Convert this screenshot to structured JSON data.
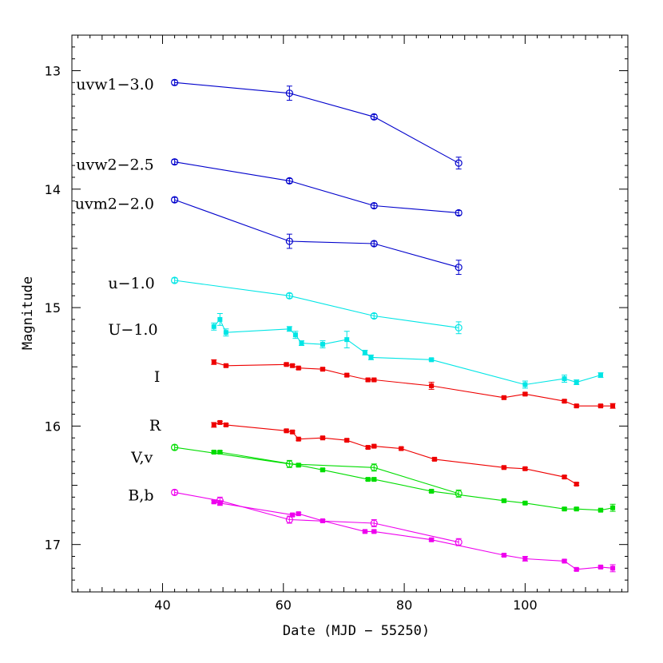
{
  "chart_data": {
    "type": "line",
    "xlabel": "Date (MJD − 55250)",
    "ylabel": "Magnitude",
    "xlim": [
      25,
      117
    ],
    "ylim": [
      17.4,
      12.7
    ],
    "y_inverted": true,
    "x_ticks": [
      40,
      60,
      80,
      100
    ],
    "y_ticks": [
      13,
      14,
      15,
      16,
      17
    ],
    "grid": false,
    "legend": "inline labels",
    "series": [
      {
        "label": "uvw1−3.0",
        "color": "#0000cc",
        "marker": "open-circle",
        "label_pos": [
          25.7,
          13.11
        ],
        "points": [
          [
            42,
            13.1,
            0.02
          ],
          [
            61,
            13.19,
            0.06
          ],
          [
            75,
            13.39,
            0.02
          ],
          [
            89,
            13.78,
            0.05
          ]
        ]
      },
      {
        "label": "uvw2−2.5",
        "color": "#0000cc",
        "marker": "open-circle",
        "label_pos": [
          25.7,
          13.79
        ],
        "points": [
          [
            42,
            13.77,
            0.02
          ],
          [
            61,
            13.93,
            0.02
          ],
          [
            75,
            14.14,
            0.02
          ],
          [
            89,
            14.2,
            0.02
          ]
        ]
      },
      {
        "label": "uvm2−2.0",
        "color": "#0000cc",
        "marker": "open-circle",
        "label_pos": [
          25.5,
          14.12
        ],
        "points": [
          [
            42,
            14.09,
            0.02
          ],
          [
            61,
            14.44,
            0.06
          ],
          [
            75,
            14.46,
            0.02
          ],
          [
            89,
            14.66,
            0.06
          ]
        ]
      },
      {
        "label": "u−1.0",
        "color": "#00e5e5",
        "marker": "open-circle",
        "label_pos": [
          31,
          14.79
        ],
        "points": [
          [
            42,
            14.77,
            0.02
          ],
          [
            61,
            14.9,
            0.02
          ],
          [
            75,
            15.07,
            0.02
          ],
          [
            89,
            15.17,
            0.05
          ]
        ]
      },
      {
        "label": "U−1.0",
        "color": "#00e5e5",
        "marker": "filled-square",
        "label_pos": [
          31,
          15.18
        ],
        "points": [
          [
            48.5,
            15.16,
            0.03
          ],
          [
            49.5,
            15.1,
            0.05
          ],
          [
            50.5,
            15.21,
            0.03
          ],
          [
            61,
            15.18,
            0.02
          ],
          [
            62,
            15.23,
            0.03
          ],
          [
            63,
            15.3,
            0.02
          ],
          [
            66.5,
            15.31,
            0.03
          ],
          [
            70.5,
            15.27,
            0.07
          ],
          [
            73.5,
            15.38,
            0.02
          ],
          [
            74.5,
            15.42,
            0.02
          ],
          [
            84.5,
            15.44,
            0.01
          ],
          [
            100,
            15.65,
            0.03
          ],
          [
            106.5,
            15.6,
            0.03
          ],
          [
            108.5,
            15.63,
            0.02
          ],
          [
            112.5,
            15.57,
            0.02
          ]
        ]
      },
      {
        "label": "I",
        "color": "#ee0000",
        "marker": "filled-square",
        "label_pos": [
          38.6,
          15.58
        ],
        "points": [
          [
            48.5,
            15.46,
            0.02
          ],
          [
            50.5,
            15.49,
            0.01
          ],
          [
            60.5,
            15.48,
            0.01
          ],
          [
            61.5,
            15.49,
            0.01
          ],
          [
            62.5,
            15.51,
            0.01
          ],
          [
            66.5,
            15.52,
            0.01
          ],
          [
            70.5,
            15.57,
            0.01
          ],
          [
            74,
            15.61,
            0.01
          ],
          [
            75,
            15.61,
            0.01
          ],
          [
            84.5,
            15.66,
            0.03
          ],
          [
            96.5,
            15.76,
            0.01
          ],
          [
            100,
            15.73,
            0.01
          ],
          [
            106.5,
            15.79,
            0.01
          ],
          [
            108.5,
            15.83,
            0.01
          ],
          [
            112.5,
            15.83,
            0.01
          ],
          [
            114.5,
            15.83,
            0.02
          ]
        ]
      },
      {
        "label": "R",
        "color": "#ee0000",
        "marker": "filled-square",
        "label_pos": [
          37.8,
          15.99
        ],
        "points": [
          [
            48.5,
            15.99,
            0.02
          ],
          [
            49.5,
            15.97,
            0.01
          ],
          [
            50.5,
            15.99,
            0.01
          ],
          [
            60.5,
            16.04,
            0.01
          ],
          [
            61.5,
            16.05,
            0.01
          ],
          [
            62.5,
            16.11,
            0.01
          ],
          [
            66.5,
            16.1,
            0.01
          ],
          [
            70.5,
            16.12,
            0.01
          ],
          [
            74,
            16.18,
            0.01
          ],
          [
            75,
            16.17,
            0.01
          ],
          [
            79.5,
            16.19,
            0.01
          ],
          [
            85,
            16.28,
            0.01
          ],
          [
            96.5,
            16.35,
            0.01
          ],
          [
            100,
            16.36,
            0.01
          ],
          [
            106.5,
            16.43,
            0.01
          ],
          [
            108.5,
            16.49,
            0.01
          ]
        ]
      },
      {
        "label": "V,v",
        "color": "#00dd00",
        "marker": "filled-square",
        "label_pos": [
          34.8,
          16.26
        ],
        "points": [
          [
            48.5,
            16.22,
            0.01
          ],
          [
            49.5,
            16.22,
            0.01
          ],
          [
            62.5,
            16.33,
            0.01
          ],
          [
            66.5,
            16.37,
            0.01
          ],
          [
            74,
            16.45,
            0.01
          ],
          [
            75,
            16.45,
            0.01
          ],
          [
            84.5,
            16.55,
            0.01
          ],
          [
            96.5,
            16.63,
            0.01
          ],
          [
            100,
            16.65,
            0.01
          ],
          [
            106.5,
            16.7,
            0.01
          ],
          [
            108.5,
            16.7,
            0.01
          ],
          [
            112.5,
            16.71,
            0.01
          ],
          [
            114.5,
            16.69,
            0.03
          ]
        ]
      },
      {
        "label": "",
        "color": "#00dd00",
        "marker": "open-circle",
        "points": [
          [
            42,
            16.18,
            0.02
          ],
          [
            61,
            16.32,
            0.03
          ],
          [
            75,
            16.35,
            0.03
          ],
          [
            89,
            16.57,
            0.03
          ]
        ]
      },
      {
        "label": "B,b",
        "color": "#ee00ee",
        "marker": "filled-square",
        "label_pos": [
          34.3,
          16.58
        ],
        "points": [
          [
            48.5,
            16.64,
            0.01
          ],
          [
            49.5,
            16.65,
            0.02
          ],
          [
            61.5,
            16.75,
            0.01
          ],
          [
            62.5,
            16.74,
            0.01
          ],
          [
            66.5,
            16.8,
            0.01
          ],
          [
            73.5,
            16.89,
            0.01
          ],
          [
            75,
            16.89,
            0.01
          ],
          [
            84.5,
            16.96,
            0.01
          ],
          [
            96.5,
            17.09,
            0.01
          ],
          [
            100,
            17.12,
            0.02
          ],
          [
            106.5,
            17.14,
            0.01
          ],
          [
            108.5,
            17.21,
            0.01
          ],
          [
            112.5,
            17.19,
            0.01
          ],
          [
            114.5,
            17.2,
            0.03
          ]
        ]
      },
      {
        "label": "",
        "color": "#ee00ee",
        "marker": "open-circle",
        "points": [
          [
            42,
            16.56,
            0.02
          ],
          [
            49.5,
            16.63,
            0.03
          ],
          [
            61,
            16.79,
            0.03
          ],
          [
            75,
            16.82,
            0.03
          ],
          [
            89,
            16.98,
            0.03
          ]
        ]
      }
    ]
  }
}
